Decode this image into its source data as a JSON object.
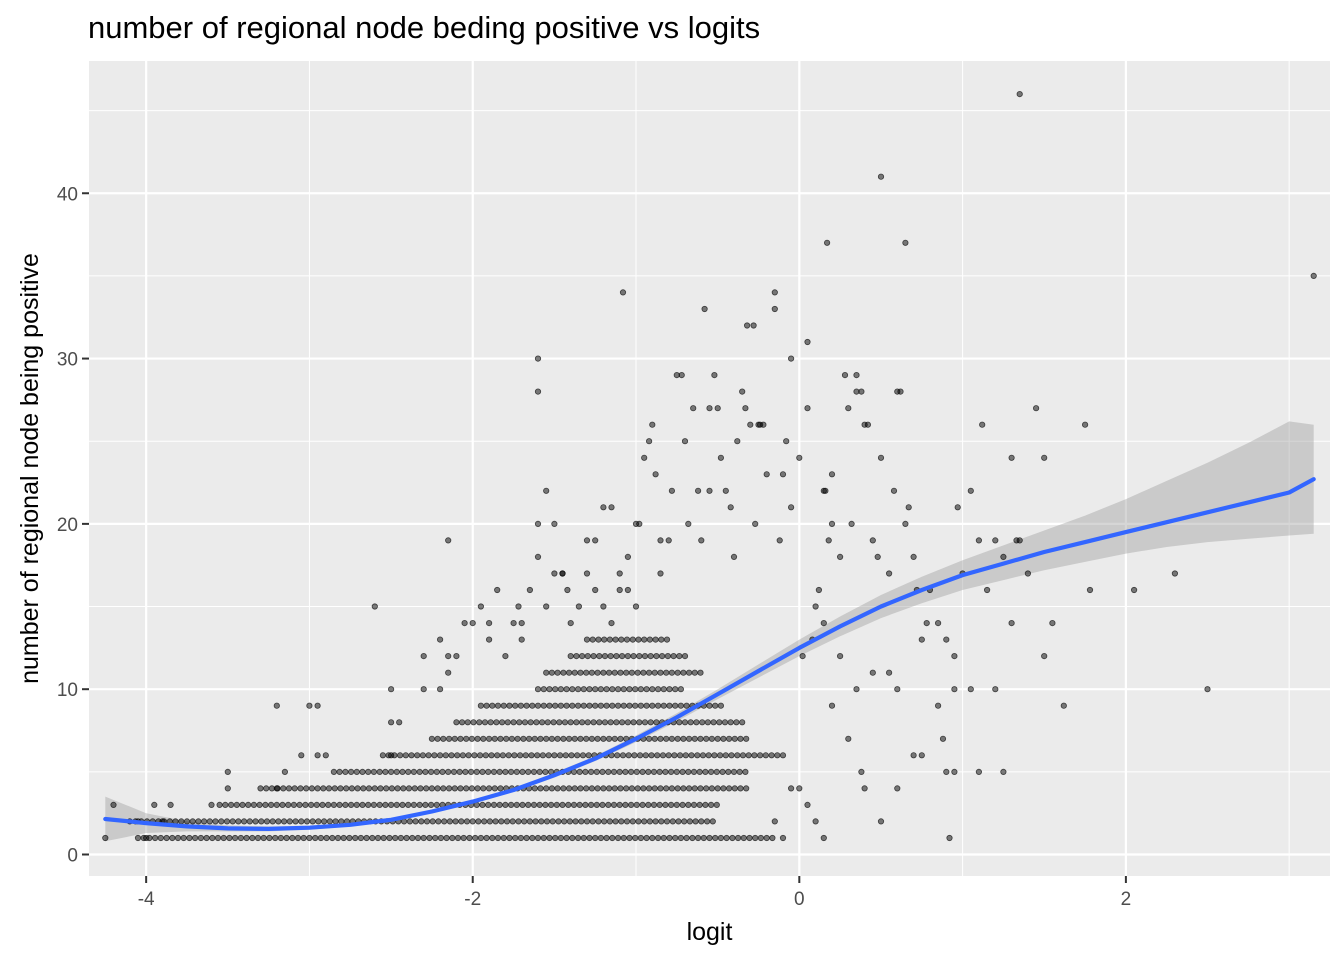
{
  "chart_data": {
    "type": "scatter",
    "title": "number of regional node beding positive vs logits",
    "xlabel": "logit",
    "ylabel": "number of regional node being positive",
    "xlim": [
      -4.35,
      3.25
    ],
    "ylim": [
      -1.3,
      48
    ],
    "x_ticks": [
      -4,
      -2,
      0,
      2
    ],
    "x_tick_labels": [
      "-4",
      "-2",
      "0",
      "2"
    ],
    "y_ticks": [
      0,
      10,
      20,
      30,
      40
    ],
    "y_tick_labels": [
      "0",
      "10",
      "20",
      "30",
      "40"
    ],
    "grid": true,
    "colors": {
      "panel": "#ebebeb",
      "grid": "#ffffff",
      "points": "#000000",
      "smooth_line": "#3366ff",
      "ribbon": "#999999"
    },
    "dense_bands": [
      {
        "y": 1,
        "x_from": -4.05,
        "x_to": -0.15
      },
      {
        "y": 2,
        "x_from": -4.1,
        "x_to": -0.5
      },
      {
        "y": 3,
        "x_from": -3.55,
        "x_to": -0.5
      },
      {
        "y": 4,
        "x_from": -3.3,
        "x_to": -0.3
      },
      {
        "y": 5,
        "x_from": -2.85,
        "x_to": -0.3
      },
      {
        "y": 6,
        "x_from": -2.55,
        "x_to": -0.1
      },
      {
        "y": 7,
        "x_from": -2.25,
        "x_to": -0.3
      },
      {
        "y": 8,
        "x_from": -2.1,
        "x_to": -0.35
      },
      {
        "y": 9,
        "x_from": -1.95,
        "x_to": -0.45
      },
      {
        "y": 10,
        "x_from": -1.6,
        "x_to": -0.7
      },
      {
        "y": 11,
        "x_from": -1.55,
        "x_to": -0.6
      },
      {
        "y": 12,
        "x_from": -1.4,
        "x_to": -0.7
      },
      {
        "y": 13,
        "x_from": -1.3,
        "x_to": -0.8
      }
    ],
    "points": [
      [
        -4.25,
        1
      ],
      [
        -4.2,
        3
      ],
      [
        -4.05,
        2
      ],
      [
        -4.0,
        1
      ],
      [
        -3.95,
        3
      ],
      [
        -3.9,
        2
      ],
      [
        -3.85,
        3
      ],
      [
        -3.6,
        3
      ],
      [
        -3.5,
        4
      ],
      [
        -3.5,
        5
      ],
      [
        -3.2,
        4
      ],
      [
        -3.15,
        5
      ],
      [
        -3.05,
        6
      ],
      [
        -2.95,
        6
      ],
      [
        -2.9,
        6
      ],
      [
        -3.2,
        9
      ],
      [
        -3.0,
        9
      ],
      [
        -2.95,
        9
      ],
      [
        -2.6,
        15
      ],
      [
        -2.5,
        6
      ],
      [
        -2.5,
        8
      ],
      [
        -2.5,
        10
      ],
      [
        -2.45,
        8
      ],
      [
        -2.3,
        10
      ],
      [
        -2.3,
        12
      ],
      [
        -2.2,
        13
      ],
      [
        -2.2,
        10
      ],
      [
        -2.15,
        11
      ],
      [
        -2.15,
        19
      ],
      [
        -2.15,
        12
      ],
      [
        -2.1,
        12
      ],
      [
        -2.05,
        14
      ],
      [
        -2.0,
        14
      ],
      [
        -1.95,
        15
      ],
      [
        -1.9,
        14
      ],
      [
        -1.9,
        13
      ],
      [
        -1.85,
        16
      ],
      [
        -1.8,
        12
      ],
      [
        -1.75,
        14
      ],
      [
        -1.72,
        15
      ],
      [
        -1.7,
        13
      ],
      [
        -1.7,
        14
      ],
      [
        -1.65,
        16
      ],
      [
        -1.6,
        18
      ],
      [
        -1.55,
        15
      ],
      [
        -1.5,
        17
      ],
      [
        -1.45,
        17
      ],
      [
        -1.42,
        16
      ],
      [
        -1.4,
        14
      ],
      [
        -1.35,
        15
      ],
      [
        -1.3,
        17
      ],
      [
        -1.25,
        16
      ],
      [
        -1.2,
        15
      ],
      [
        -1.15,
        14
      ],
      [
        -1.1,
        17
      ],
      [
        -1.05,
        16
      ],
      [
        -1.0,
        15
      ],
      [
        -1.6,
        20
      ],
      [
        -1.55,
        22
      ],
      [
        -1.6,
        28
      ],
      [
        -1.6,
        30
      ],
      [
        -1.5,
        20
      ],
      [
        -1.45,
        17
      ],
      [
        -1.3,
        19
      ],
      [
        -1.25,
        19
      ],
      [
        -1.2,
        21
      ],
      [
        -1.15,
        21
      ],
      [
        -1.1,
        16
      ],
      [
        -1.08,
        34
      ],
      [
        -1.05,
        18
      ],
      [
        -1.0,
        20
      ],
      [
        -0.98,
        20
      ],
      [
        -0.95,
        24
      ],
      [
        -0.92,
        25
      ],
      [
        -0.9,
        26
      ],
      [
        -0.88,
        23
      ],
      [
        -0.85,
        17
      ],
      [
        -0.85,
        19
      ],
      [
        -0.8,
        19
      ],
      [
        -0.78,
        22
      ],
      [
        -0.75,
        29
      ],
      [
        -0.72,
        29
      ],
      [
        -0.7,
        25
      ],
      [
        -0.68,
        20
      ],
      [
        -0.65,
        27
      ],
      [
        -0.62,
        22
      ],
      [
        -0.6,
        19
      ],
      [
        -0.58,
        33
      ],
      [
        -0.55,
        27
      ],
      [
        -0.55,
        22
      ],
      [
        -0.52,
        29
      ],
      [
        -0.5,
        27
      ],
      [
        -0.48,
        24
      ],
      [
        -0.45,
        22
      ],
      [
        -0.42,
        21
      ],
      [
        -0.4,
        18
      ],
      [
        -0.38,
        25
      ],
      [
        -0.35,
        28
      ],
      [
        -0.33,
        27
      ],
      [
        -0.32,
        32
      ],
      [
        -0.3,
        26
      ],
      [
        -0.28,
        32
      ],
      [
        -0.27,
        20
      ],
      [
        -0.25,
        26
      ],
      [
        -0.24,
        26
      ],
      [
        -0.22,
        26
      ],
      [
        -0.2,
        23
      ],
      [
        -0.15,
        33
      ],
      [
        -0.15,
        34
      ],
      [
        -0.12,
        19
      ],
      [
        -0.1,
        23
      ],
      [
        -0.08,
        25
      ],
      [
        -0.05,
        21
      ],
      [
        0.0,
        24
      ],
      [
        -0.05,
        30
      ],
      [
        0.05,
        27
      ],
      [
        0.05,
        31
      ],
      [
        0.1,
        15
      ],
      [
        0.12,
        16
      ],
      [
        0.15,
        22
      ],
      [
        0.16,
        22
      ],
      [
        0.17,
        37
      ],
      [
        0.18,
        19
      ],
      [
        0.2,
        23
      ],
      [
        0.2,
        20
      ],
      [
        0.25,
        18
      ],
      [
        0.28,
        29
      ],
      [
        0.3,
        27
      ],
      [
        0.32,
        20
      ],
      [
        0.35,
        28
      ],
      [
        0.35,
        29
      ],
      [
        0.38,
        28
      ],
      [
        0.4,
        26
      ],
      [
        0.42,
        26
      ],
      [
        0.45,
        19
      ],
      [
        0.48,
        18
      ],
      [
        0.5,
        41
      ],
      [
        0.5,
        24
      ],
      [
        0.55,
        17
      ],
      [
        0.58,
        22
      ],
      [
        0.6,
        28
      ],
      [
        0.62,
        28
      ],
      [
        0.65,
        37
      ],
      [
        0.65,
        20
      ],
      [
        0.67,
        21
      ],
      [
        0.7,
        18
      ],
      [
        0.72,
        16
      ],
      [
        0.75,
        13
      ],
      [
        0.78,
        14
      ],
      [
        0.8,
        16
      ],
      [
        0.85,
        14
      ],
      [
        0.9,
        13
      ],
      [
        0.95,
        12
      ],
      [
        0.97,
        21
      ],
      [
        1.0,
        17
      ],
      [
        1.05,
        22
      ],
      [
        1.1,
        19
      ],
      [
        1.12,
        26
      ],
      [
        1.15,
        16
      ],
      [
        1.2,
        19
      ],
      [
        1.25,
        18
      ],
      [
        1.3,
        24
      ],
      [
        1.33,
        19
      ],
      [
        1.35,
        46
      ],
      [
        1.4,
        17
      ],
      [
        1.45,
        27
      ],
      [
        1.5,
        24
      ],
      [
        1.5,
        12
      ],
      [
        1.55,
        14
      ],
      [
        1.62,
        9
      ],
      [
        1.75,
        26
      ],
      [
        1.78,
        16
      ],
      [
        2.05,
        16
      ],
      [
        2.3,
        17
      ],
      [
        2.5,
        10
      ],
      [
        3.15,
        35
      ],
      [
        0.95,
        5
      ],
      [
        0.92,
        1
      ],
      [
        0.88,
        7
      ],
      [
        0.9,
        5
      ],
      [
        1.1,
        5
      ],
      [
        1.2,
        10
      ],
      [
        1.25,
        5
      ],
      [
        1.3,
        14
      ],
      [
        1.35,
        19
      ],
      [
        0.75,
        6
      ],
      [
        0.7,
        6
      ],
      [
        0.6,
        4
      ],
      [
        0.5,
        2
      ],
      [
        0.4,
        4
      ],
      [
        0.38,
        5
      ],
      [
        0.3,
        7
      ],
      [
        0.2,
        9
      ],
      [
        0.15,
        1
      ],
      [
        0.1,
        2
      ],
      [
        0.05,
        3
      ],
      [
        0.0,
        4
      ],
      [
        -0.05,
        4
      ],
      [
        -0.1,
        1
      ],
      [
        -0.15,
        2
      ],
      [
        0.95,
        10
      ],
      [
        1.05,
        10
      ],
      [
        0.85,
        9
      ],
      [
        0.6,
        10
      ],
      [
        0.55,
        11
      ],
      [
        0.45,
        11
      ],
      [
        0.35,
        10
      ],
      [
        0.25,
        12
      ],
      [
        0.15,
        14
      ],
      [
        0.08,
        13
      ],
      [
        0.02,
        12
      ]
    ],
    "smooth_curve": [
      {
        "x": -4.25,
        "y": 2.15,
        "lower": 0.8,
        "upper": 3.5
      },
      {
        "x": -4.0,
        "y": 1.9,
        "lower": 1.3,
        "upper": 2.5
      },
      {
        "x": -3.75,
        "y": 1.7,
        "lower": 1.4,
        "upper": 2.0
      },
      {
        "x": -3.5,
        "y": 1.58,
        "lower": 1.4,
        "upper": 1.76
      },
      {
        "x": -3.25,
        "y": 1.55,
        "lower": 1.4,
        "upper": 1.7
      },
      {
        "x": -3.0,
        "y": 1.62,
        "lower": 1.5,
        "upper": 1.74
      },
      {
        "x": -2.75,
        "y": 1.8,
        "lower": 1.7,
        "upper": 1.9
      },
      {
        "x": -2.5,
        "y": 2.1,
        "lower": 2.0,
        "upper": 2.2
      },
      {
        "x": -2.25,
        "y": 2.6,
        "lower": 2.5,
        "upper": 2.7
      },
      {
        "x": -2.0,
        "y": 3.2,
        "lower": 3.1,
        "upper": 3.3
      },
      {
        "x": -1.75,
        "y": 3.9,
        "lower": 3.8,
        "upper": 4.0
      },
      {
        "x": -1.5,
        "y": 4.8,
        "lower": 4.65,
        "upper": 4.95
      },
      {
        "x": -1.25,
        "y": 5.8,
        "lower": 5.65,
        "upper": 5.95
      },
      {
        "x": -1.0,
        "y": 7.0,
        "lower": 6.8,
        "upper": 7.2
      },
      {
        "x": -0.75,
        "y": 8.3,
        "lower": 8.05,
        "upper": 8.55
      },
      {
        "x": -0.5,
        "y": 9.7,
        "lower": 9.4,
        "upper": 10.0
      },
      {
        "x": -0.25,
        "y": 11.1,
        "lower": 10.7,
        "upper": 11.5
      },
      {
        "x": 0.0,
        "y": 12.5,
        "lower": 12.0,
        "upper": 13.0
      },
      {
        "x": 0.25,
        "y": 13.8,
        "lower": 13.2,
        "upper": 14.4
      },
      {
        "x": 0.5,
        "y": 15.0,
        "lower": 14.3,
        "upper": 15.7
      },
      {
        "x": 0.75,
        "y": 16.0,
        "lower": 15.2,
        "upper": 16.8
      },
      {
        "x": 1.0,
        "y": 16.9,
        "lower": 16.0,
        "upper": 17.8
      },
      {
        "x": 1.25,
        "y": 17.6,
        "lower": 16.6,
        "upper": 18.7
      },
      {
        "x": 1.5,
        "y": 18.3,
        "lower": 17.2,
        "upper": 19.6
      },
      {
        "x": 1.75,
        "y": 18.9,
        "lower": 17.7,
        "upper": 20.5
      },
      {
        "x": 2.0,
        "y": 19.5,
        "lower": 18.2,
        "upper": 21.5
      },
      {
        "x": 2.25,
        "y": 20.1,
        "lower": 18.6,
        "upper": 22.6
      },
      {
        "x": 2.5,
        "y": 20.7,
        "lower": 18.9,
        "upper": 23.7
      },
      {
        "x": 2.75,
        "y": 21.3,
        "lower": 19.1,
        "upper": 24.9
      },
      {
        "x": 3.0,
        "y": 21.9,
        "lower": 19.3,
        "upper": 26.2
      },
      {
        "x": 3.15,
        "y": 22.7,
        "lower": 19.4,
        "upper": 26.0
      }
    ]
  }
}
